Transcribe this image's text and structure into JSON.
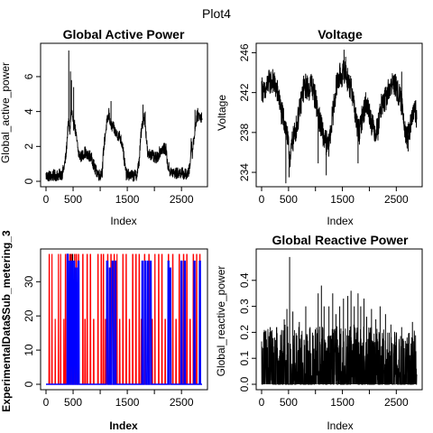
{
  "figure": {
    "title": "Plot4"
  },
  "chart_data": [
    {
      "type": "line",
      "title": "Global Active Power",
      "xlabel": "Index",
      "ylabel": "Global_active_power",
      "xlim": [
        0,
        2880
      ],
      "ylim": [
        0,
        7.6
      ],
      "x_ticks": [
        0,
        500,
        1500,
        2500
      ],
      "x_tick_marks": [
        0,
        500,
        1000,
        1500,
        2000,
        2500
      ],
      "y_ticks": [
        0,
        2,
        4,
        6
      ],
      "line_color": "#000000",
      "profile": [
        [
          0,
          0.32
        ],
        [
          80,
          0.3
        ],
        [
          160,
          0.33
        ],
        [
          230,
          0.36
        ],
        [
          300,
          0.42
        ],
        [
          340,
          0.9
        ],
        [
          370,
          1.5
        ],
        [
          400,
          2.9
        ],
        [
          420,
          3.4
        ],
        [
          440,
          2.9
        ],
        [
          460,
          3.7
        ],
        [
          480,
          4.0
        ],
        [
          500,
          3.1
        ],
        [
          520,
          3.4
        ],
        [
          560,
          2.5
        ],
        [
          600,
          1.6
        ],
        [
          640,
          1.4
        ],
        [
          680,
          1.5
        ],
        [
          720,
          1.7
        ],
        [
          760,
          1.4
        ],
        [
          800,
          1.5
        ],
        [
          860,
          1.2
        ],
        [
          900,
          0.7
        ],
        [
          960,
          0.45
        ],
        [
          1000,
          0.35
        ],
        [
          1040,
          0.6
        ],
        [
          1060,
          1.7
        ],
        [
          1090,
          2.6
        ],
        [
          1120,
          3.3
        ],
        [
          1160,
          3.8
        ],
        [
          1200,
          3.2
        ],
        [
          1240,
          3.1
        ],
        [
          1300,
          2.7
        ],
        [
          1360,
          2.6
        ],
        [
          1420,
          2.0
        ],
        [
          1440,
          1.3
        ],
        [
          1480,
          0.4
        ],
        [
          1560,
          0.35
        ],
        [
          1620,
          0.3
        ],
        [
          1680,
          0.4
        ],
        [
          1720,
          1.2
        ],
        [
          1750,
          2.6
        ],
        [
          1780,
          3.3
        ],
        [
          1810,
          3.8
        ],
        [
          1840,
          3.0
        ],
        [
          1880,
          1.4
        ],
        [
          1920,
          1.6
        ],
        [
          1960,
          1.5
        ],
        [
          2000,
          1.3
        ],
        [
          2060,
          1.4
        ],
        [
          2100,
          1.7
        ],
        [
          2160,
          1.9
        ],
        [
          2220,
          1.8
        ],
        [
          2240,
          1.0
        ],
        [
          2300,
          0.5
        ],
        [
          2400,
          0.45
        ],
        [
          2500,
          0.5
        ],
        [
          2560,
          0.4
        ],
        [
          2620,
          0.4
        ],
        [
          2660,
          0.9
        ],
        [
          2680,
          2.3
        ],
        [
          2700,
          1.6
        ],
        [
          2720,
          2.2
        ],
        [
          2750,
          3.0
        ],
        [
          2780,
          3.7
        ],
        [
          2820,
          3.8
        ],
        [
          2860,
          3.7
        ],
        [
          2880,
          3.7
        ]
      ],
      "spikes": [
        [
          420,
          7.5
        ],
        [
          452,
          6.3
        ],
        [
          470,
          5.8
        ],
        [
          510,
          5.4
        ],
        [
          1160,
          4.2
        ],
        [
          1200,
          4.6
        ],
        [
          1790,
          4.4
        ],
        [
          1830,
          4.0
        ],
        [
          2750,
          4.1
        ],
        [
          2800,
          4.2
        ]
      ],
      "noise": 0.35
    },
    {
      "type": "line",
      "title": "Voltage",
      "xlabel": "Index",
      "ylabel": "Voltage",
      "xlim": [
        0,
        2880
      ],
      "ylim": [
        233.1,
        246.4
      ],
      "x_ticks": [
        0,
        500,
        1500,
        2500
      ],
      "x_tick_marks": [
        0,
        500,
        1000,
        1500,
        2000,
        2500
      ],
      "y_ticks": [
        234,
        238,
        242,
        246
      ],
      "line_color": "#000000",
      "profile": [
        [
          0,
          242.5
        ],
        [
          60,
          241.8
        ],
        [
          120,
          243.0
        ],
        [
          200,
          243.2
        ],
        [
          260,
          242.6
        ],
        [
          320,
          241.6
        ],
        [
          360,
          240.1
        ],
        [
          420,
          239.2
        ],
        [
          460,
          238.3
        ],
        [
          500,
          236.4
        ],
        [
          540,
          235.3
        ],
        [
          560,
          236.8
        ],
        [
          600,
          237.6
        ],
        [
          660,
          238.9
        ],
        [
          720,
          240.6
        ],
        [
          760,
          242.0
        ],
        [
          820,
          242.7
        ],
        [
          880,
          242.3
        ],
        [
          920,
          243.0
        ],
        [
          960,
          242.2
        ],
        [
          1000,
          241.4
        ],
        [
          1060,
          239.6
        ],
        [
          1100,
          238.7
        ],
        [
          1160,
          237.4
        ],
        [
          1200,
          237.0
        ],
        [
          1240,
          236.5
        ],
        [
          1280,
          238.1
        ],
        [
          1340,
          240.6
        ],
        [
          1380,
          242.4
        ],
        [
          1420,
          243.2
        ],
        [
          1460,
          243.8
        ],
        [
          1500,
          243.7
        ],
        [
          1540,
          244.3
        ],
        [
          1580,
          243.6
        ],
        [
          1620,
          242.9
        ],
        [
          1660,
          242.3
        ],
        [
          1700,
          241.6
        ],
        [
          1740,
          239.8
        ],
        [
          1780,
          238.4
        ],
        [
          1820,
          238.0
        ],
        [
          1860,
          239.4
        ],
        [
          1900,
          240.2
        ],
        [
          1940,
          241.0
        ],
        [
          1980,
          240.4
        ],
        [
          2020,
          239.6
        ],
        [
          2060,
          238.6
        ],
        [
          2120,
          238.1
        ],
        [
          2160,
          238.5
        ],
        [
          2200,
          240.2
        ],
        [
          2240,
          240.9
        ],
        [
          2300,
          241.3
        ],
        [
          2360,
          242.3
        ],
        [
          2420,
          242.8
        ],
        [
          2460,
          243.0
        ],
        [
          2500,
          242.4
        ],
        [
          2560,
          241.6
        ],
        [
          2620,
          240.4
        ],
        [
          2660,
          238.6
        ],
        [
          2700,
          237.2
        ],
        [
          2740,
          238.2
        ],
        [
          2780,
          239.0
        ],
        [
          2820,
          240.1
        ],
        [
          2860,
          240.0
        ],
        [
          2880,
          239.6
        ]
      ],
      "spikes": [
        [
          450,
          232.9
        ],
        [
          510,
          233.5
        ],
        [
          780,
          243.7
        ],
        [
          1050,
          234.9
        ],
        [
          1200,
          233.7
        ],
        [
          1530,
          246.3
        ],
        [
          1560,
          245.6
        ],
        [
          1790,
          234.9
        ],
        [
          2600,
          244.1
        ],
        [
          2720,
          236.1
        ]
      ],
      "noise": 1.3
    },
    {
      "type": "line",
      "title": "",
      "xlabel": "Index",
      "ylabel": "ExperimentalData$Sub_metering_3",
      "xlim": [
        0,
        2880
      ],
      "ylim": [
        0,
        38
      ],
      "x_ticks": [
        0,
        500,
        1500,
        2500
      ],
      "x_tick_marks": [
        0,
        500,
        1000,
        1500,
        2000,
        2500
      ],
      "y_ticks": [
        0,
        10,
        20,
        30
      ],
      "series": [
        {
          "color": "#000000",
          "baseline": 0,
          "bursts": [
            [
              420,
              20
            ],
            [
              455,
              38
            ],
            [
              490,
              38
            ],
            [
              530,
              38
            ],
            [
              560,
              2
            ],
            [
              580,
              1
            ]
          ]
        },
        {
          "color": "#ff0000",
          "baseline": 0,
          "bursts": [
            [
              60,
              38
            ],
            [
              110,
              38
            ],
            [
              170,
              19
            ],
            [
              230,
              38
            ],
            [
              270,
              38
            ],
            [
              330,
              19
            ],
            [
              360,
              38
            ],
            [
              400,
              38
            ],
            [
              440,
              38
            ],
            [
              470,
              38
            ],
            [
              500,
              19
            ],
            [
              530,
              38
            ],
            [
              560,
              38
            ],
            [
              600,
              38
            ],
            [
              680,
              38
            ],
            [
              720,
              19
            ],
            [
              760,
              38
            ],
            [
              820,
              38
            ],
            [
              880,
              19
            ],
            [
              960,
              38
            ],
            [
              1020,
              38
            ],
            [
              1060,
              38
            ],
            [
              1100,
              19
            ],
            [
              1140,
              38
            ],
            [
              1200,
              38
            ],
            [
              1260,
              38
            ],
            [
              1310,
              38
            ],
            [
              1360,
              19
            ],
            [
              1420,
              38
            ],
            [
              1480,
              38
            ],
            [
              1540,
              19
            ],
            [
              1600,
              38
            ],
            [
              1660,
              38
            ],
            [
              1720,
              38
            ],
            [
              1760,
              19
            ],
            [
              1820,
              38
            ],
            [
              1900,
              38
            ],
            [
              1960,
              19
            ],
            [
              2010,
              38
            ],
            [
              2080,
              38
            ],
            [
              2140,
              38
            ],
            [
              2200,
              19
            ],
            [
              2260,
              38
            ],
            [
              2340,
              38
            ],
            [
              2400,
              19
            ],
            [
              2460,
              38
            ],
            [
              2540,
              38
            ],
            [
              2600,
              38
            ],
            [
              2660,
              19
            ],
            [
              2720,
              38
            ],
            [
              2780,
              38
            ],
            [
              2840,
              38
            ]
          ]
        },
        {
          "color": "#0000ff",
          "baseline": 0,
          "bursts": [
            [
              400,
              38
            ],
            [
              440,
              36
            ],
            [
              480,
              36
            ],
            [
              520,
              36
            ],
            [
              560,
              34
            ],
            [
              600,
              36
            ],
            [
              1130,
              36
            ],
            [
              1180,
              34
            ],
            [
              1230,
              36
            ],
            [
              1280,
              36
            ],
            [
              1780,
              36
            ],
            [
              1830,
              36
            ],
            [
              1880,
              36
            ],
            [
              1930,
              36
            ],
            [
              2260,
              36
            ],
            [
              2290,
              34
            ],
            [
              2500,
              36
            ],
            [
              2560,
              36
            ],
            [
              2740,
              36
            ],
            [
              2840,
              36
            ]
          ]
        }
      ]
    },
    {
      "type": "line",
      "title": "Global Reactive Power",
      "xlabel": "Index",
      "ylabel": "Global_reactive_power",
      "xlim": [
        0,
        2880
      ],
      "ylim": [
        0,
        0.5
      ],
      "x_ticks": [
        0,
        500,
        1500,
        2500
      ],
      "x_tick_marks": [
        0,
        500,
        1000,
        1500,
        2000,
        2500
      ],
      "y_ticks": [
        0.0,
        0.1,
        0.2,
        0.3,
        0.4
      ],
      "y_tick_labels": [
        "0.0",
        "0.1",
        "0.2",
        "0.3",
        "0.4"
      ],
      "line_color": "#000000",
      "profile": [
        [
          0,
          0.08
        ],
        [
          400,
          0.1
        ],
        [
          800,
          0.09
        ],
        [
          1200,
          0.1
        ],
        [
          1600,
          0.1
        ],
        [
          2000,
          0.1
        ],
        [
          2400,
          0.09
        ],
        [
          2880,
          0.08
        ]
      ],
      "spikes": [
        [
          60,
          0.2
        ],
        [
          160,
          0.22
        ],
        [
          240,
          0.18
        ],
        [
          420,
          0.25
        ],
        [
          470,
          0.29
        ],
        [
          520,
          0.49
        ],
        [
          580,
          0.28
        ],
        [
          700,
          0.24
        ],
        [
          820,
          0.3
        ],
        [
          900,
          0.22
        ],
        [
          1050,
          0.35
        ],
        [
          1110,
          0.38
        ],
        [
          1160,
          0.3
        ],
        [
          1250,
          0.3
        ],
        [
          1320,
          0.35
        ],
        [
          1380,
          0.27
        ],
        [
          1450,
          0.3
        ],
        [
          1520,
          0.33
        ],
        [
          1600,
          0.34
        ],
        [
          1660,
          0.36
        ],
        [
          1720,
          0.3
        ],
        [
          1790,
          0.35
        ],
        [
          1840,
          0.3
        ],
        [
          1900,
          0.33
        ],
        [
          1950,
          0.26
        ],
        [
          2040,
          0.29
        ],
        [
          2120,
          0.25
        ],
        [
          2200,
          0.3
        ],
        [
          2300,
          0.27
        ],
        [
          2400,
          0.23
        ],
        [
          2500,
          0.2
        ],
        [
          2600,
          0.22
        ],
        [
          2700,
          0.18
        ],
        [
          2800,
          0.24
        ]
      ],
      "noise": 0.13,
      "zero_dropouts": true
    }
  ]
}
